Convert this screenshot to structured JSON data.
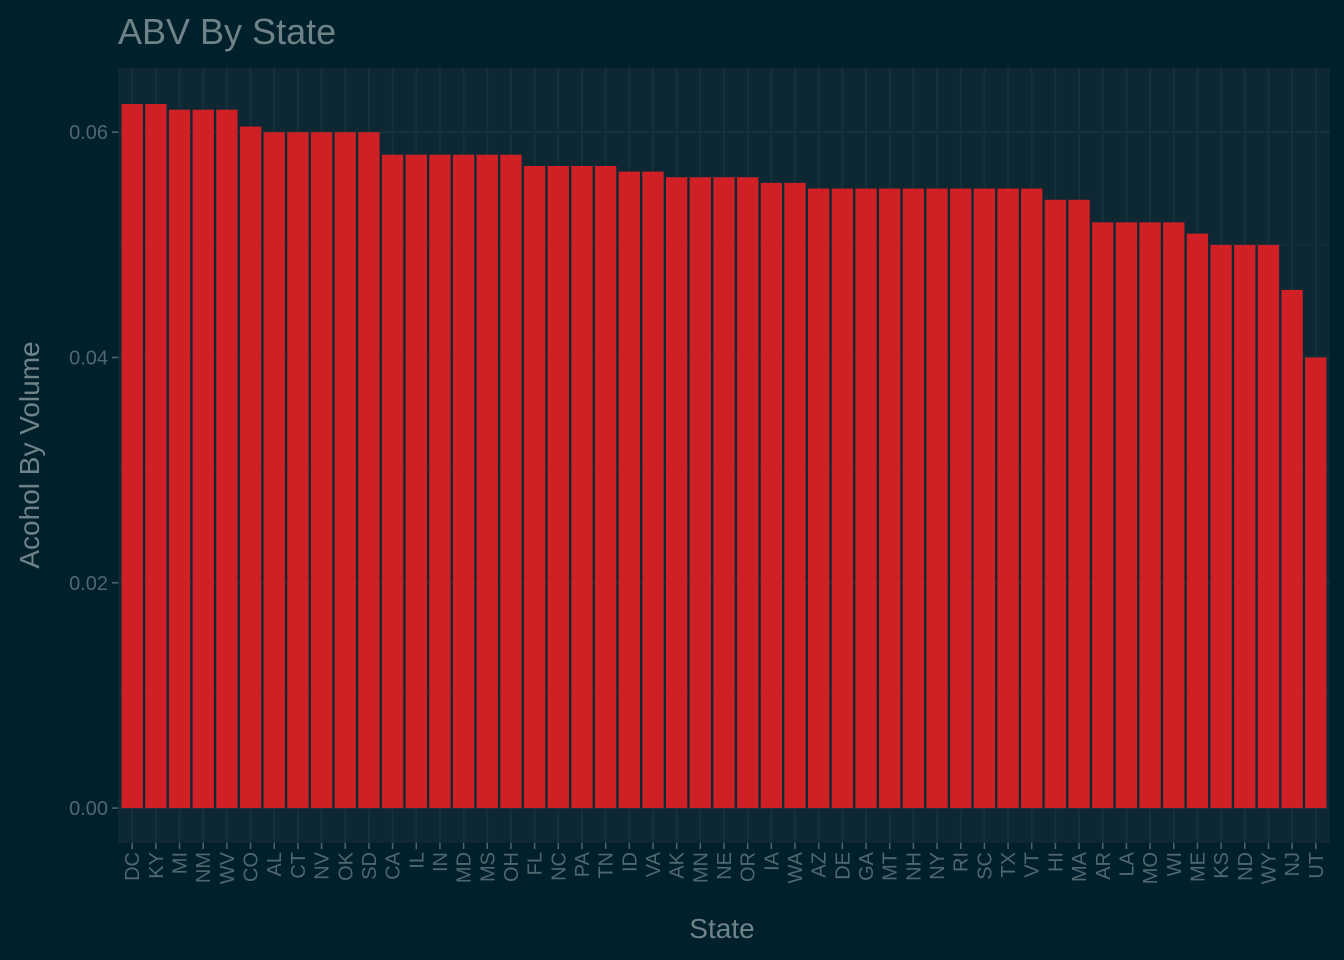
{
  "colors": {
    "background": "#00202c",
    "panel": "#0d2833",
    "grid": "#16313c",
    "bar": "#d11f26",
    "text": "#6f8288",
    "tick_text": "#50676e"
  },
  "chart_data": {
    "type": "bar",
    "title": "ABV By State",
    "xlabel": "State",
    "ylabel": "Acohol By Volume",
    "ylim": [
      -0.0031,
      0.0657
    ],
    "yticks": [
      "0.00",
      "0.02",
      "0.04",
      "0.06"
    ],
    "grid": true,
    "categories": [
      "DC",
      "KY",
      "MI",
      "NM",
      "WV",
      "CO",
      "AL",
      "CT",
      "NV",
      "OK",
      "SD",
      "CA",
      "IL",
      "IN",
      "MD",
      "MS",
      "OH",
      "FL",
      "NC",
      "PA",
      "TN",
      "ID",
      "VA",
      "AK",
      "MN",
      "NE",
      "OR",
      "IA",
      "WA",
      "AZ",
      "DE",
      "GA",
      "MT",
      "NH",
      "NY",
      "RI",
      "SC",
      "TX",
      "VT",
      "HI",
      "MA",
      "AR",
      "LA",
      "MO",
      "WI",
      "ME",
      "KS",
      "ND",
      "WY",
      "NJ",
      "UT"
    ],
    "values": [
      0.0625,
      0.0625,
      0.062,
      0.062,
      0.062,
      0.0605,
      0.06,
      0.06,
      0.06,
      0.06,
      0.06,
      0.058,
      0.058,
      0.058,
      0.058,
      0.058,
      0.058,
      0.057,
      0.057,
      0.057,
      0.057,
      0.0565,
      0.0565,
      0.056,
      0.056,
      0.056,
      0.056,
      0.0555,
      0.0555,
      0.055,
      0.055,
      0.055,
      0.055,
      0.055,
      0.055,
      0.055,
      0.055,
      0.055,
      0.055,
      0.054,
      0.054,
      0.052,
      0.052,
      0.052,
      0.052,
      0.051,
      0.05,
      0.05,
      0.05,
      0.046,
      0.04
    ]
  }
}
